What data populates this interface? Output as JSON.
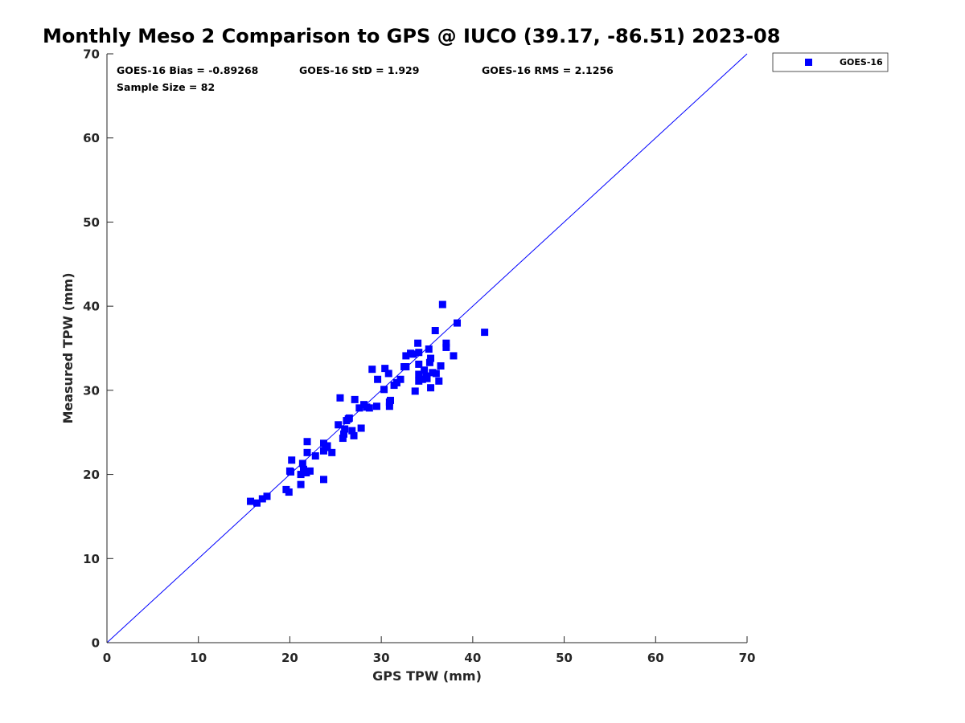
{
  "chart_data": {
    "type": "scatter",
    "title": "Monthly Meso 2 Comparison to GPS @ IUCO (39.17, -86.51) 2023-08",
    "xlabel": "GPS TPW (mm)",
    "ylabel": "Measured TPW (mm)",
    "xlim": [
      0,
      70
    ],
    "ylim": [
      0,
      70
    ],
    "xticks": [
      "0",
      "10",
      "20",
      "30",
      "40",
      "50",
      "60",
      "70"
    ],
    "yticks": [
      "0",
      "10",
      "20",
      "30",
      "40",
      "50",
      "60",
      "70"
    ],
    "grid": false,
    "legend_position": "outside-top-right",
    "reference_line": {
      "type": "one-to-one",
      "color": "#0000ff"
    },
    "annotations": {
      "bias": "GOES-16 Bias = -0.89268",
      "std": "GOES-16 StD = 1.929",
      "rms": "GOES-16 RMS = 2.1256",
      "sample": "Sample Size = 82"
    },
    "series": [
      {
        "name": "GOES-16",
        "color": "#0000ff",
        "marker": "square",
        "points": [
          [
            15.7,
            16.8
          ],
          [
            16.4,
            16.6
          ],
          [
            17.0,
            17.1
          ],
          [
            17.5,
            17.4
          ],
          [
            19.6,
            18.2
          ],
          [
            19.9,
            17.9
          ],
          [
            20.0,
            20.4
          ],
          [
            20.2,
            21.7
          ],
          [
            21.2,
            18.8
          ],
          [
            21.2,
            20.0
          ],
          [
            21.4,
            21.3
          ],
          [
            21.5,
            20.6
          ],
          [
            21.8,
            20.2
          ],
          [
            21.9,
            22.6
          ],
          [
            21.9,
            23.9
          ],
          [
            22.2,
            20.4
          ],
          [
            22.8,
            22.2
          ],
          [
            23.7,
            19.4
          ],
          [
            23.7,
            22.8
          ],
          [
            23.7,
            23.7
          ],
          [
            23.9,
            23.2
          ],
          [
            24.6,
            22.6
          ],
          [
            25.3,
            25.9
          ],
          [
            25.5,
            29.1
          ],
          [
            25.8,
            24.3
          ],
          [
            25.9,
            24.8
          ],
          [
            26.0,
            25.4
          ],
          [
            26.2,
            26.4
          ],
          [
            26.4,
            26.6
          ],
          [
            26.8,
            25.2
          ],
          [
            27.0,
            24.6
          ],
          [
            27.1,
            28.9
          ],
          [
            27.6,
            27.9
          ],
          [
            27.8,
            25.5
          ],
          [
            28.1,
            28.3
          ],
          [
            28.7,
            27.9
          ],
          [
            29.0,
            32.5
          ],
          [
            29.5,
            28.1
          ],
          [
            29.6,
            31.3
          ],
          [
            30.3,
            30.1
          ],
          [
            30.4,
            32.6
          ],
          [
            30.8,
            32.0
          ],
          [
            30.9,
            28.6
          ],
          [
            30.9,
            28.1
          ],
          [
            31.4,
            30.6
          ],
          [
            31.7,
            30.9
          ],
          [
            32.1,
            31.3
          ],
          [
            32.5,
            32.8
          ],
          [
            32.7,
            34.1
          ],
          [
            32.7,
            32.8
          ],
          [
            33.5,
            34.3
          ],
          [
            33.7,
            29.9
          ],
          [
            34.0,
            35.6
          ],
          [
            34.1,
            34.5
          ],
          [
            34.1,
            33.1
          ],
          [
            34.1,
            31.9
          ],
          [
            34.1,
            31.1
          ],
          [
            34.5,
            31.3
          ],
          [
            34.7,
            32.4
          ],
          [
            34.9,
            31.7
          ],
          [
            35.2,
            34.9
          ],
          [
            35.3,
            33.3
          ],
          [
            35.4,
            33.8
          ],
          [
            35.4,
            30.3
          ],
          [
            35.6,
            32.1
          ],
          [
            35.9,
            37.1
          ],
          [
            36.0,
            32.0
          ],
          [
            36.3,
            31.1
          ],
          [
            36.5,
            32.9
          ],
          [
            36.7,
            40.2
          ],
          [
            37.1,
            35.6
          ],
          [
            37.1,
            35.1
          ],
          [
            37.9,
            34.1
          ],
          [
            38.3,
            38.0
          ],
          [
            41.3,
            36.9
          ],
          [
            24.1,
            23.4
          ],
          [
            26.5,
            26.7
          ],
          [
            28.4,
            28.0
          ],
          [
            31.0,
            28.8
          ],
          [
            33.2,
            34.4
          ],
          [
            35.0,
            31.4
          ],
          [
            20.1,
            20.3
          ]
        ]
      }
    ]
  }
}
